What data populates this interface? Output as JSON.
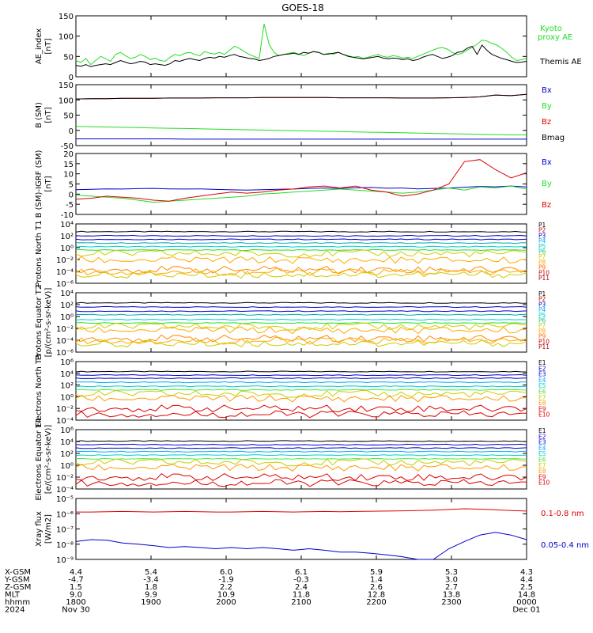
{
  "title": "GOES-18",
  "colors": {
    "black": "#000000",
    "blue": "#0000cc",
    "green": "#22dd22",
    "red": "#dd0000",
    "cyan": "#00cccc",
    "yellow": "#cccc00",
    "orange": "#ff9900",
    "lightgreen": "#44ee44"
  },
  "chart_data": [
    {
      "type": "line",
      "ylabel": "AE_index [nT]",
      "ylim": [
        0,
        150
      ],
      "yticks": [
        "0",
        "50",
        "100",
        "150"
      ],
      "legend": [
        "Kyoto proxy AE",
        "Themis AE"
      ],
      "series": [
        {
          "name": "Kyoto proxy AE",
          "color": "#22dd22",
          "values": [
            40,
            35,
            45,
            30,
            40,
            50,
            45,
            38,
            55,
            60,
            52,
            45,
            48,
            55,
            50,
            42,
            46,
            40,
            38,
            48,
            55,
            52,
            58,
            60,
            55,
            52,
            62,
            58,
            56,
            60,
            55,
            65,
            75,
            70,
            62,
            55,
            50,
            45,
            130,
            80,
            60,
            52,
            55,
            58,
            60,
            56,
            52,
            58,
            62,
            60,
            55,
            58,
            56,
            60,
            55,
            52,
            48,
            50,
            45,
            48,
            52,
            55,
            50,
            48,
            52,
            50,
            46,
            48,
            45,
            50,
            55,
            60,
            65,
            70,
            72,
            68,
            60,
            55,
            58,
            65,
            72,
            80,
            90,
            88,
            82,
            78,
            70,
            60,
            48,
            40,
            42,
            45
          ]
        },
        {
          "name": "Themis AE",
          "color": "#000000",
          "values": [
            28,
            26,
            30,
            25,
            28,
            30,
            32,
            30,
            35,
            40,
            36,
            32,
            34,
            38,
            36,
            30,
            32,
            30,
            28,
            32,
            40,
            38,
            42,
            45,
            42,
            40,
            45,
            48,
            46,
            50,
            48,
            52,
            55,
            50,
            48,
            45,
            44,
            40,
            42,
            45,
            50,
            52,
            55,
            56,
            58,
            55,
            60,
            58,
            62,
            60,
            55,
            56,
            58,
            60,
            55,
            50,
            48,
            46,
            44,
            46,
            48,
            50,
            46,
            44,
            46,
            45,
            42,
            44,
            40,
            42,
            48,
            52,
            55,
            50,
            45,
            48,
            52,
            60,
            62,
            70,
            75,
            55,
            78,
            65,
            55,
            50,
            45,
            42,
            38,
            35,
            36,
            38
          ]
        }
      ]
    },
    {
      "type": "line",
      "ylabel": "B (SM) [nT]",
      "ylim": [
        -50,
        150
      ],
      "yticks": [
        "-50",
        "0",
        "50",
        "100",
        "150"
      ],
      "legend": [
        "Bx",
        "By",
        "Bz",
        "Bmag"
      ],
      "series": [
        {
          "name": "Bx",
          "color": "#0000cc",
          "values": [
            -28,
            -28,
            -28,
            -28,
            -28,
            -28,
            -28,
            -29,
            -29,
            -29,
            -29,
            -29,
            -29,
            -29,
            -29,
            -29,
            -29,
            -29,
            -29,
            -29,
            -29,
            -29,
            -29,
            -29,
            -29,
            -29,
            -29,
            -29,
            -29,
            -29
          ]
        },
        {
          "name": "By",
          "color": "#22dd22",
          "values": [
            13,
            12,
            11,
            10,
            9,
            8,
            7,
            6,
            5,
            4,
            3,
            2,
            1,
            0,
            -1,
            -2,
            -3,
            -4,
            -5,
            -6,
            -7,
            -8,
            -9,
            -10,
            -11,
            -12,
            -13,
            -14,
            -15,
            -15
          ]
        },
        {
          "name": "Bz",
          "color": "#dd0000",
          "values": [
            103,
            104,
            104,
            105,
            105,
            105,
            106,
            106,
            106,
            107,
            107,
            107,
            108,
            108,
            108,
            108,
            108,
            107,
            107,
            107,
            107,
            106,
            106,
            106,
            107,
            108,
            110,
            116,
            114,
            118
          ]
        },
        {
          "name": "Bmag",
          "color": "#000000",
          "values": [
            103,
            104,
            104,
            105,
            105,
            105,
            106,
            106,
            106,
            107,
            107,
            107,
            108,
            108,
            108,
            108,
            108,
            107,
            107,
            107,
            107,
            106,
            106,
            106,
            107,
            108,
            110,
            116,
            114,
            118
          ]
        }
      ]
    },
    {
      "type": "line",
      "ylabel": "B (SM)-IGRF (SM) [nT]",
      "ylim": [
        -10,
        20
      ],
      "yticks": [
        "-10",
        "-5",
        "0",
        "5",
        "10",
        "15",
        "20"
      ],
      "legend": [
        "Bx",
        "By",
        "Bz"
      ],
      "series": [
        {
          "name": "Bx",
          "color": "#0000cc",
          "values": [
            2.2,
            2.4,
            2.6,
            2.5,
            2.7,
            2.8,
            2.6,
            2.5,
            2.6,
            2.3,
            2.1,
            2.0,
            2.2,
            2.4,
            2.5,
            2.8,
            3.0,
            2.8,
            3.1,
            3.3,
            2.9,
            3.0,
            2.6,
            2.8,
            3.0,
            3.4,
            3.8,
            3.6,
            4.0,
            3.5
          ]
        },
        {
          "name": "By",
          "color": "#22dd22",
          "values": [
            -0.5,
            -1.0,
            -1.5,
            -2.0,
            -3.0,
            -4.0,
            -3.5,
            -3.0,
            -2.5,
            -2.0,
            -1.5,
            -1.0,
            0.0,
            0.5,
            1.0,
            1.5,
            2.0,
            2.5,
            2.0,
            1.5,
            1.0,
            0.5,
            1.0,
            2.0,
            3.0,
            2.0,
            3.5,
            3.0,
            4.0,
            2.5
          ]
        },
        {
          "name": "Bz",
          "color": "#dd0000",
          "values": [
            -2.5,
            -2.0,
            -1.0,
            -1.5,
            -2.0,
            -3.0,
            -3.5,
            -2.0,
            -1.0,
            0.0,
            1.0,
            0.5,
            1.0,
            2.0,
            2.5,
            3.5,
            4.0,
            3.0,
            4.0,
            2.0,
            1.0,
            -1.0,
            0.0,
            2.0,
            5.0,
            16.0,
            17.0,
            12.0,
            8.0,
            10.5
          ]
        }
      ]
    },
    {
      "type": "line",
      "ylabel": "Protons North T1",
      "log": true,
      "ylim": [
        1e-06,
        10000.0
      ],
      "yticks": [
        "10⁻⁶",
        "10⁻⁴",
        "10⁻²",
        "10⁰",
        "10²",
        "10⁴"
      ],
      "legend": [
        "P1",
        "P2",
        "P3",
        "P4",
        "P5",
        "P6",
        "P7",
        "P8",
        "P9",
        "P10",
        "P11"
      ],
      "levels": [
        500,
        100,
        25,
        6,
        1.5,
        0.4,
        0.1,
        0.008,
        0.0002,
        8e-05,
        3e-05
      ]
    },
    {
      "type": "line",
      "ylabel": "Protons Equator T2 [p/(cm²-s-sr-keV)]",
      "log": true,
      "ylim": [
        1e-06,
        10000.0
      ],
      "yticks": [
        "10⁻⁶",
        "10⁻⁴",
        "10⁻²",
        "10⁰",
        "10²",
        "10⁴"
      ],
      "legend": [
        "P1",
        "P2",
        "P3",
        "P4",
        "P5",
        "P6",
        "P7",
        "P8",
        "P9",
        "P10",
        "P11"
      ],
      "levels": [
        200,
        40,
        8,
        2,
        0.3,
        0.08,
        0.02,
        0.005,
        0.0002,
        8e-05,
        3e-05
      ]
    },
    {
      "type": "line",
      "ylabel": "Electrons North T3",
      "log": true,
      "ylim": [
        0.0001,
        1000000.0
      ],
      "yticks": [
        "10⁻⁴",
        "10⁻²",
        "10⁰",
        "10²",
        "10⁴",
        "10⁶"
      ],
      "legend": [
        "E1",
        "E2",
        "E3",
        "E4",
        "E5",
        "E6",
        "E7",
        "E8",
        "E9",
        "E10"
      ],
      "levels": [
        20000,
        5000,
        1500,
        300,
        60,
        15,
        3,
        0.5,
        0.01,
        0.001
      ]
    },
    {
      "type": "line",
      "ylabel": "Electrons Equator T4 [e/(cm²-s-sr-keV)]",
      "log": true,
      "ylim": [
        0.0001,
        1000000.0
      ],
      "yticks": [
        "10⁻⁴",
        "10⁻²",
        "10⁰",
        "10²",
        "10⁴",
        "10⁶"
      ],
      "legend": [
        "E1",
        "E2",
        "E3",
        "E4",
        "E5",
        "E6",
        "E7",
        "E8",
        "E9",
        "E10"
      ],
      "levels": [
        12000,
        3000,
        800,
        200,
        50,
        12,
        3,
        0.4,
        0.01,
        0.001
      ]
    },
    {
      "type": "line",
      "ylabel": "Xray flux [W/m2]",
      "log": true,
      "ylim": [
        1e-09,
        1e-05
      ],
      "yticks": [
        "10⁻⁹",
        "10⁻⁸",
        "10⁻⁷",
        "10⁻⁶",
        "10⁻⁵"
      ],
      "legend": [
        "0.1-0.8 nm",
        "0.05-0.4 nm"
      ],
      "series": [
        {
          "name": "0.1-0.8 nm",
          "color": "#dd0000",
          "values": [
            1.3e-06,
            1.3e-06,
            1.35e-06,
            1.4e-06,
            1.35e-06,
            1.3e-06,
            1.35e-06,
            1.4e-06,
            1.35e-06,
            1.3e-06,
            1.3e-06,
            1.35e-06,
            1.4e-06,
            1.35e-06,
            1.3e-06,
            1.35e-06,
            1.4e-06,
            1.35e-06,
            1.4e-06,
            1.45e-06,
            1.5e-06,
            1.55e-06,
            1.6e-06,
            1.7e-06,
            1.9e-06,
            2.1e-06,
            2e-06,
            1.8e-06,
            1.6e-06,
            1.5e-06
          ]
        },
        {
          "name": "0.05-0.4 nm",
          "color": "#0000cc",
          "values": [
            1.5e-08,
            2e-08,
            1.8e-08,
            1.2e-08,
            1e-08,
            8e-09,
            6e-09,
            7e-09,
            6e-09,
            5e-09,
            6e-09,
            5e-09,
            6e-09,
            5e-09,
            4e-09,
            5e-09,
            4e-09,
            3e-09,
            3e-09,
            2.5e-09,
            2e-09,
            1.5e-09,
            1e-09,
            1e-09,
            5e-09,
            1.5e-08,
            4e-08,
            6e-08,
            4e-08,
            2e-08
          ]
        }
      ]
    }
  ],
  "x_axis": {
    "row_labels": [
      "X-GSM",
      "Y-GSM",
      "Z-GSM",
      "MLT",
      "hhmm",
      "2024"
    ],
    "columns": [
      [
        "4.4",
        "-4.7",
        "1.5",
        "9.0",
        "1800",
        "Nov 30"
      ],
      [
        "5.4",
        "-3.4",
        "1.8",
        "9.9",
        "1900",
        ""
      ],
      [
        "6.0",
        "-1.9",
        "2.2",
        "10.9",
        "2000",
        ""
      ],
      [
        "6.1",
        "-0.3",
        "2.4",
        "11.8",
        "2100",
        ""
      ],
      [
        "5.9",
        "1.4",
        "2.6",
        "12.8",
        "2200",
        ""
      ],
      [
        "5.3",
        "3.0",
        "2.7",
        "13.8",
        "2300",
        ""
      ],
      [
        "4.3",
        "4.4",
        "2.5",
        "14.8",
        "0000",
        "Dec 01"
      ]
    ]
  }
}
